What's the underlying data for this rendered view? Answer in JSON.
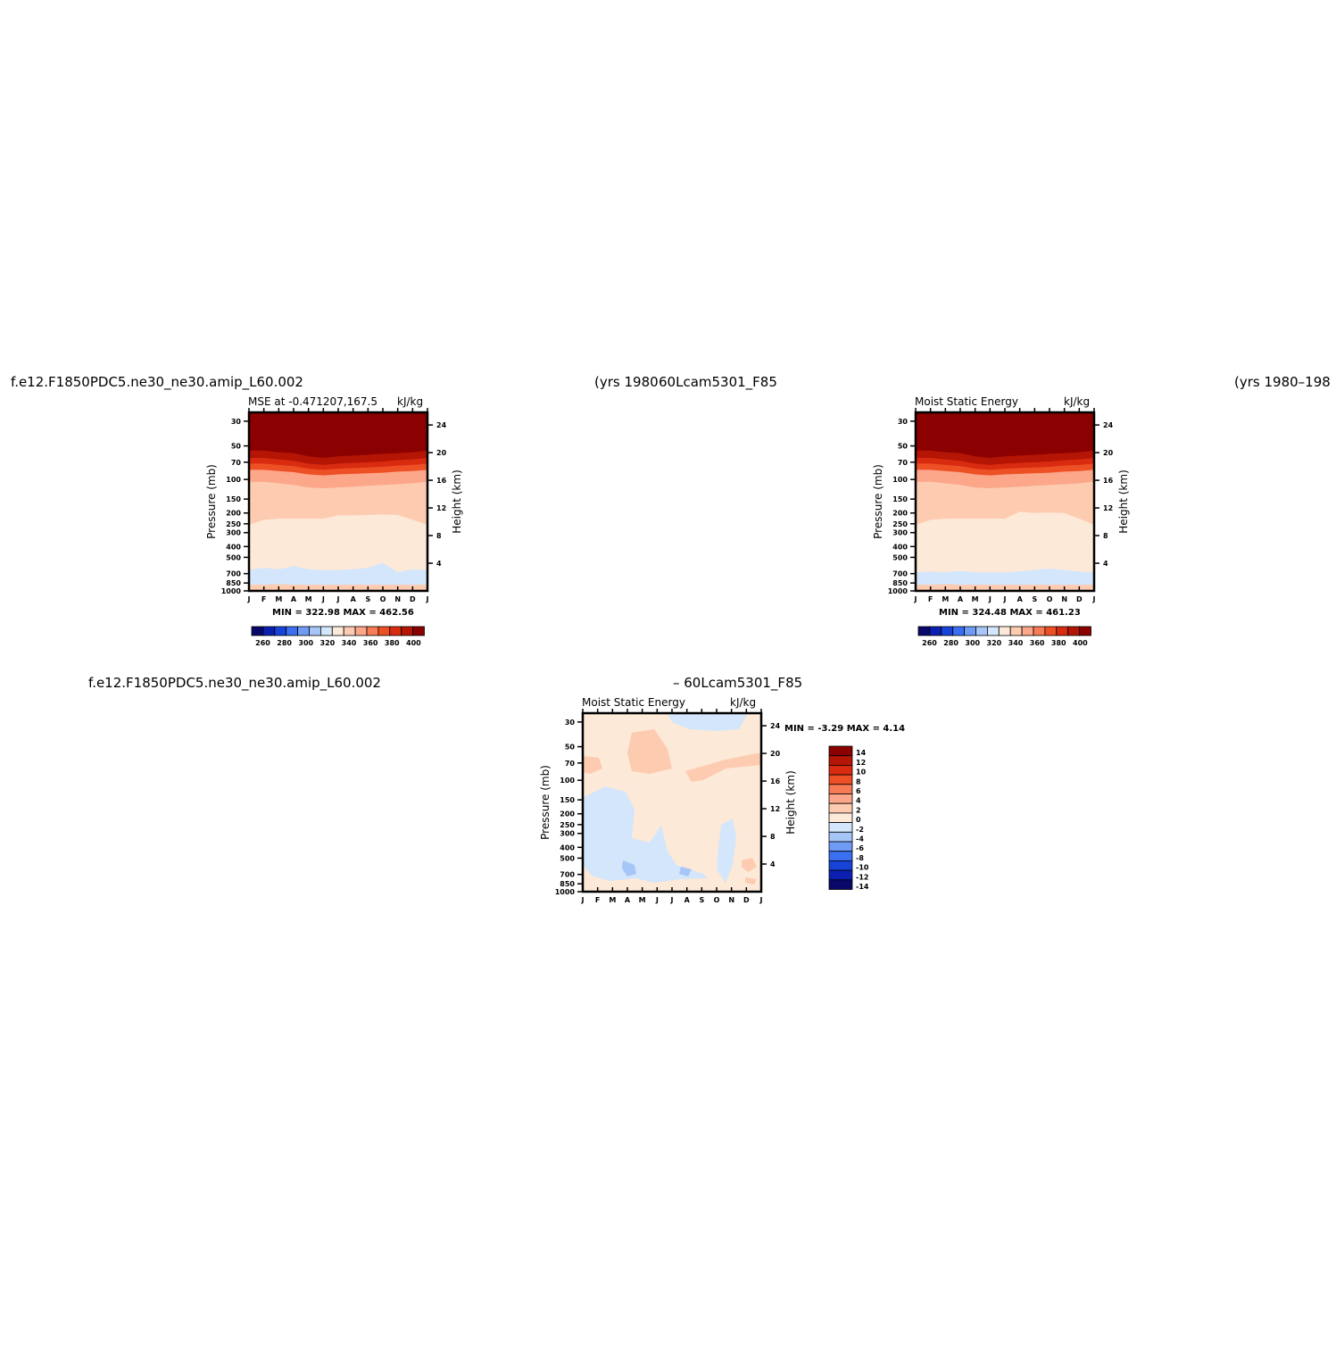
{
  "headers": {
    "top_left_case": "f.e12.F1850PDC5.ne30_ne30.amip_L60.002",
    "top_left_years": "(yrs 1980",
    "top_right_case": "60Lcam5301_F85",
    "top_right_years": "(yrs 1980–198",
    "bottom_case_a": "f.e12.F1850PDC5.ne30_ne30.amip_L60.002",
    "bottom_case_b": "–  60Lcam5301_F85"
  },
  "chart_data": [
    {
      "type": "heatmap",
      "title": "MSE at  -0.471207,167.5",
      "units": "kJ/kg",
      "ylabel": "Pressure (mb)",
      "ylabel_right": "Height (km)",
      "x_tick_labels": [
        "J",
        "F",
        "M",
        "A",
        "M",
        "J",
        "J",
        "A",
        "S",
        "O",
        "N",
        "D",
        "J"
      ],
      "y_tick_labels": [
        "30",
        "50",
        "70",
        "100",
        "150",
        "200",
        "250",
        "300",
        "400",
        "500",
        "700",
        "850",
        "1000"
      ],
      "y2_tick_labels": [
        "24",
        "20",
        "16",
        "12",
        "8",
        "4"
      ],
      "min_max_text": "MIN =  322.98  MAX =  462.56",
      "min": 322.98,
      "max": 462.56,
      "colorbar_labels": [
        "260",
        "280",
        "300",
        "320",
        "340",
        "360",
        "380",
        "400"
      ],
      "layer_boundaries_mb": [
        {
          "level": "400+",
          "top_mb": 30,
          "bottom_mb": [
            55,
            55,
            57,
            58,
            62,
            64,
            62,
            61,
            60,
            59,
            58,
            57,
            55
          ]
        },
        {
          "level": "390",
          "bottom_mb": [
            64,
            64,
            66,
            68,
            72,
            74,
            72,
            71,
            70,
            69,
            67,
            66,
            64
          ]
        },
        {
          "level": "380",
          "bottom_mb": [
            72,
            72,
            74,
            76,
            80,
            82,
            80,
            79,
            78,
            77,
            75,
            74,
            72
          ]
        },
        {
          "level": "370",
          "bottom_mb": [
            82,
            82,
            84,
            86,
            90,
            92,
            90,
            89,
            88,
            87,
            85,
            84,
            82
          ]
        },
        {
          "level": "360",
          "bottom_mb": [
            105,
            105,
            108,
            112,
            118,
            120,
            118,
            116,
            114,
            112,
            110,
            108,
            105
          ]
        },
        {
          "level": "350",
          "bottom_mb": [
            255,
            230,
            225,
            225,
            225,
            225,
            210,
            210,
            208,
            206,
            208,
            230,
            255
          ]
        },
        {
          "level": "340",
          "bottom_mb": [
            650,
            620,
            640,
            600,
            640,
            650,
            650,
            640,
            620,
            560,
            680,
            640,
            650
          ]
        },
        {
          "level": "330",
          "bottom_mb": [
            880,
            880,
            870,
            880,
            880,
            880,
            880,
            880,
            880,
            880,
            880,
            880,
            880
          ]
        }
      ]
    },
    {
      "type": "heatmap",
      "title": "Moist  Static  Energy",
      "units": "kJ/kg",
      "ylabel": "Pressure (mb)",
      "ylabel_right": "Height (km)",
      "x_tick_labels": [
        "J",
        "F",
        "M",
        "A",
        "M",
        "J",
        "J",
        "A",
        "S",
        "O",
        "N",
        "D",
        "J"
      ],
      "y_tick_labels": [
        "30",
        "50",
        "70",
        "100",
        "150",
        "200",
        "250",
        "300",
        "400",
        "500",
        "700",
        "850",
        "1000"
      ],
      "y2_tick_labels": [
        "24",
        "20",
        "16",
        "12",
        "8",
        "4"
      ],
      "min_max_text": "MIN =  324.48  MAX =  461.23",
      "min": 324.48,
      "max": 461.23,
      "colorbar_labels": [
        "260",
        "280",
        "300",
        "320",
        "340",
        "360",
        "380",
        "400"
      ],
      "layer_boundaries_mb": [
        {
          "level": "400+",
          "top_mb": 30,
          "bottom_mb": [
            55,
            55,
            57,
            58,
            62,
            64,
            62,
            61,
            60,
            59,
            58,
            57,
            55
          ]
        },
        {
          "level": "390",
          "bottom_mb": [
            64,
            64,
            66,
            68,
            72,
            74,
            72,
            71,
            70,
            69,
            67,
            66,
            64
          ]
        },
        {
          "level": "380",
          "bottom_mb": [
            72,
            72,
            74,
            76,
            80,
            82,
            80,
            79,
            78,
            77,
            75,
            74,
            72
          ]
        },
        {
          "level": "370",
          "bottom_mb": [
            82,
            82,
            84,
            86,
            90,
            92,
            90,
            89,
            88,
            87,
            85,
            84,
            82
          ]
        },
        {
          "level": "360",
          "bottom_mb": [
            105,
            105,
            108,
            112,
            118,
            120,
            118,
            116,
            114,
            112,
            110,
            108,
            105
          ]
        },
        {
          "level": "350",
          "bottom_mb": [
            255,
            230,
            225,
            225,
            225,
            225,
            225,
            195,
            200,
            198,
            200,
            225,
            255
          ]
        },
        {
          "level": "340",
          "bottom_mb": [
            680,
            670,
            680,
            660,
            680,
            680,
            680,
            670,
            650,
            630,
            650,
            670,
            680
          ]
        },
        {
          "level": "330",
          "bottom_mb": [
            880,
            880,
            870,
            880,
            880,
            880,
            880,
            880,
            880,
            880,
            880,
            880,
            880
          ]
        }
      ]
    },
    {
      "type": "heatmap",
      "title": "Moist  Static  Energy",
      "units": "kJ/kg",
      "ylabel": "Pressure (mb)",
      "ylabel_right": "Height (km)",
      "x_tick_labels": [
        "J",
        "F",
        "M",
        "A",
        "M",
        "J",
        "J",
        "A",
        "S",
        "O",
        "N",
        "D",
        "J"
      ],
      "y_tick_labels": [
        "30",
        "50",
        "70",
        "100",
        "150",
        "200",
        "250",
        "300",
        "400",
        "500",
        "700",
        "850",
        "1000"
      ],
      "y2_tick_labels": [
        "24",
        "20",
        "16",
        "12",
        "8",
        "4"
      ],
      "min_max_text": "MIN =   -3.29  MAX =     4.14",
      "min": -3.29,
      "max": 4.14,
      "colorbar_labels": [
        "14",
        "12",
        "10",
        "8",
        "6",
        "4",
        "2",
        "0",
        "-2",
        "-4",
        "-6",
        "-8",
        "-10",
        "-12",
        "-14"
      ]
    }
  ],
  "colors": {
    "seq": [
      "#08086b",
      "#0b1fb0",
      "#1743d9",
      "#3a6ff0",
      "#6e9bf5",
      "#a6c6f8",
      "#d3e6fb",
      "#fde9d8",
      "#fdcbb0",
      "#fca68a",
      "#f77b55",
      "#ee5025",
      "#d92b10",
      "#b41505",
      "#8b0000"
    ],
    "diff": [
      "#8b0000",
      "#b41505",
      "#d92b10",
      "#ee5025",
      "#f77b55",
      "#fca68a",
      "#fdcbb0",
      "#fde9d8",
      "#d3e6fb",
      "#a6c6f8",
      "#6e9bf5",
      "#3a6ff0",
      "#1743d9",
      "#0b1fb0",
      "#08086b"
    ]
  }
}
